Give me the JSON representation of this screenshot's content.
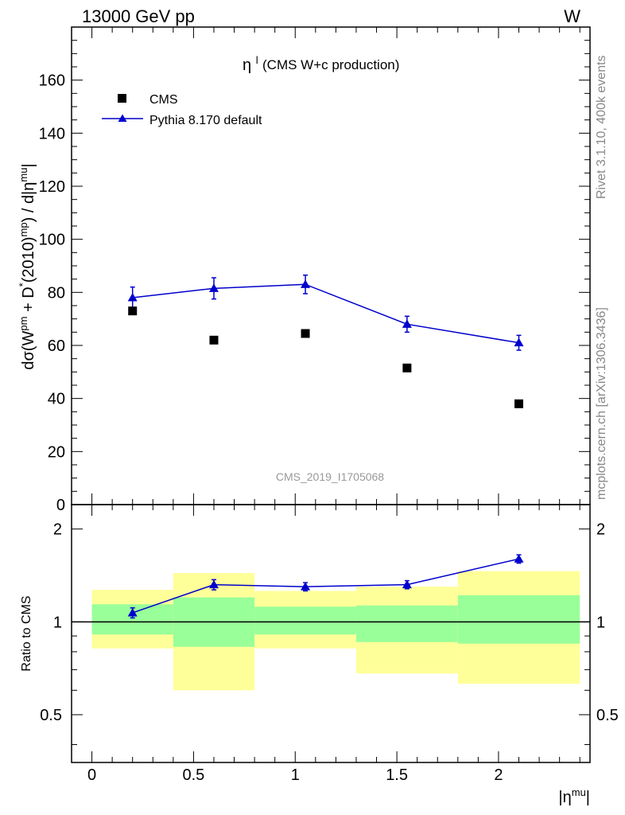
{
  "header": {
    "left": "13000 GeV pp",
    "right": "W"
  },
  "side_labels": {
    "rivet": "Rivet 3.1.10,  400k events",
    "mcplots": "mcplots.cern.ch [arXiv:1306.3436]"
  },
  "colors": {
    "data": "#000000",
    "mc": "#0000cc",
    "band_inner": "#99ff99",
    "band_outer": "#ffff99"
  },
  "chart_data": [
    {
      "type": "scatter",
      "title": "(CMS W+c production)",
      "title_symbol": "η",
      "title_symbol_sup": "l",
      "ylabel": "dσ(W^pm + D^*(2010)^mp) / d|η^mu|",
      "watermark": "CMS_2019_I1705068",
      "xlim": [
        -0.1,
        2.45
      ],
      "ylim": [
        0,
        180
      ],
      "yticks": [
        0,
        20,
        40,
        60,
        80,
        100,
        120,
        140,
        160
      ],
      "ytick_labels": [
        "0",
        "20",
        "40",
        "60",
        "80",
        "100",
        "120",
        "140",
        "160"
      ],
      "legend_position": "top-left",
      "series": [
        {
          "name": "CMS",
          "style": "square-markers",
          "x": [
            0.2,
            0.6,
            1.05,
            1.55,
            2.1
          ],
          "y": [
            73,
            62,
            64.5,
            51.5,
            38
          ]
        },
        {
          "name": "Pythia 8.170 default",
          "style": "line-triangles",
          "x": [
            0.2,
            0.6,
            1.05,
            1.55,
            2.1
          ],
          "y": [
            78,
            81.5,
            83,
            68,
            61
          ],
          "err": [
            4,
            4,
            3.5,
            3,
            2.8
          ]
        }
      ]
    },
    {
      "type": "line",
      "ylabel": "Ratio to CMS",
      "xlabel": "|η^mu|",
      "xlim": [
        -0.1,
        2.45
      ],
      "ylim": [
        0.35,
        2.4
      ],
      "yscale": "log",
      "yticks": [
        0.5,
        1,
        2
      ],
      "ytick_labels": [
        "0.5",
        "1",
        "2"
      ],
      "xticks": [
        0,
        0.5,
        1,
        1.5,
        2
      ],
      "xtick_labels": [
        "0",
        "0.5",
        "1",
        "1.5",
        "2"
      ],
      "bins": [
        [
          0,
          0.4
        ],
        [
          0.4,
          0.8
        ],
        [
          0.8,
          1.3
        ],
        [
          1.3,
          1.8
        ],
        [
          1.8,
          2.4
        ]
      ],
      "band_inner": [
        [
          0.91,
          1.14
        ],
        [
          0.83,
          1.2
        ],
        [
          0.91,
          1.12
        ],
        [
          0.86,
          1.13
        ],
        [
          0.85,
          1.22
        ]
      ],
      "band_outer": [
        [
          0.82,
          1.27
        ],
        [
          0.6,
          1.44
        ],
        [
          0.82,
          1.26
        ],
        [
          0.68,
          1.3
        ],
        [
          0.63,
          1.46
        ]
      ],
      "series": [
        {
          "name": "Pythia 8.170 default",
          "x": [
            0.2,
            0.6,
            1.05,
            1.55,
            2.1
          ],
          "y": [
            1.07,
            1.32,
            1.3,
            1.32,
            1.6
          ],
          "err": [
            0.04,
            0.05,
            0.04,
            0.04,
            0.05
          ]
        }
      ]
    }
  ]
}
